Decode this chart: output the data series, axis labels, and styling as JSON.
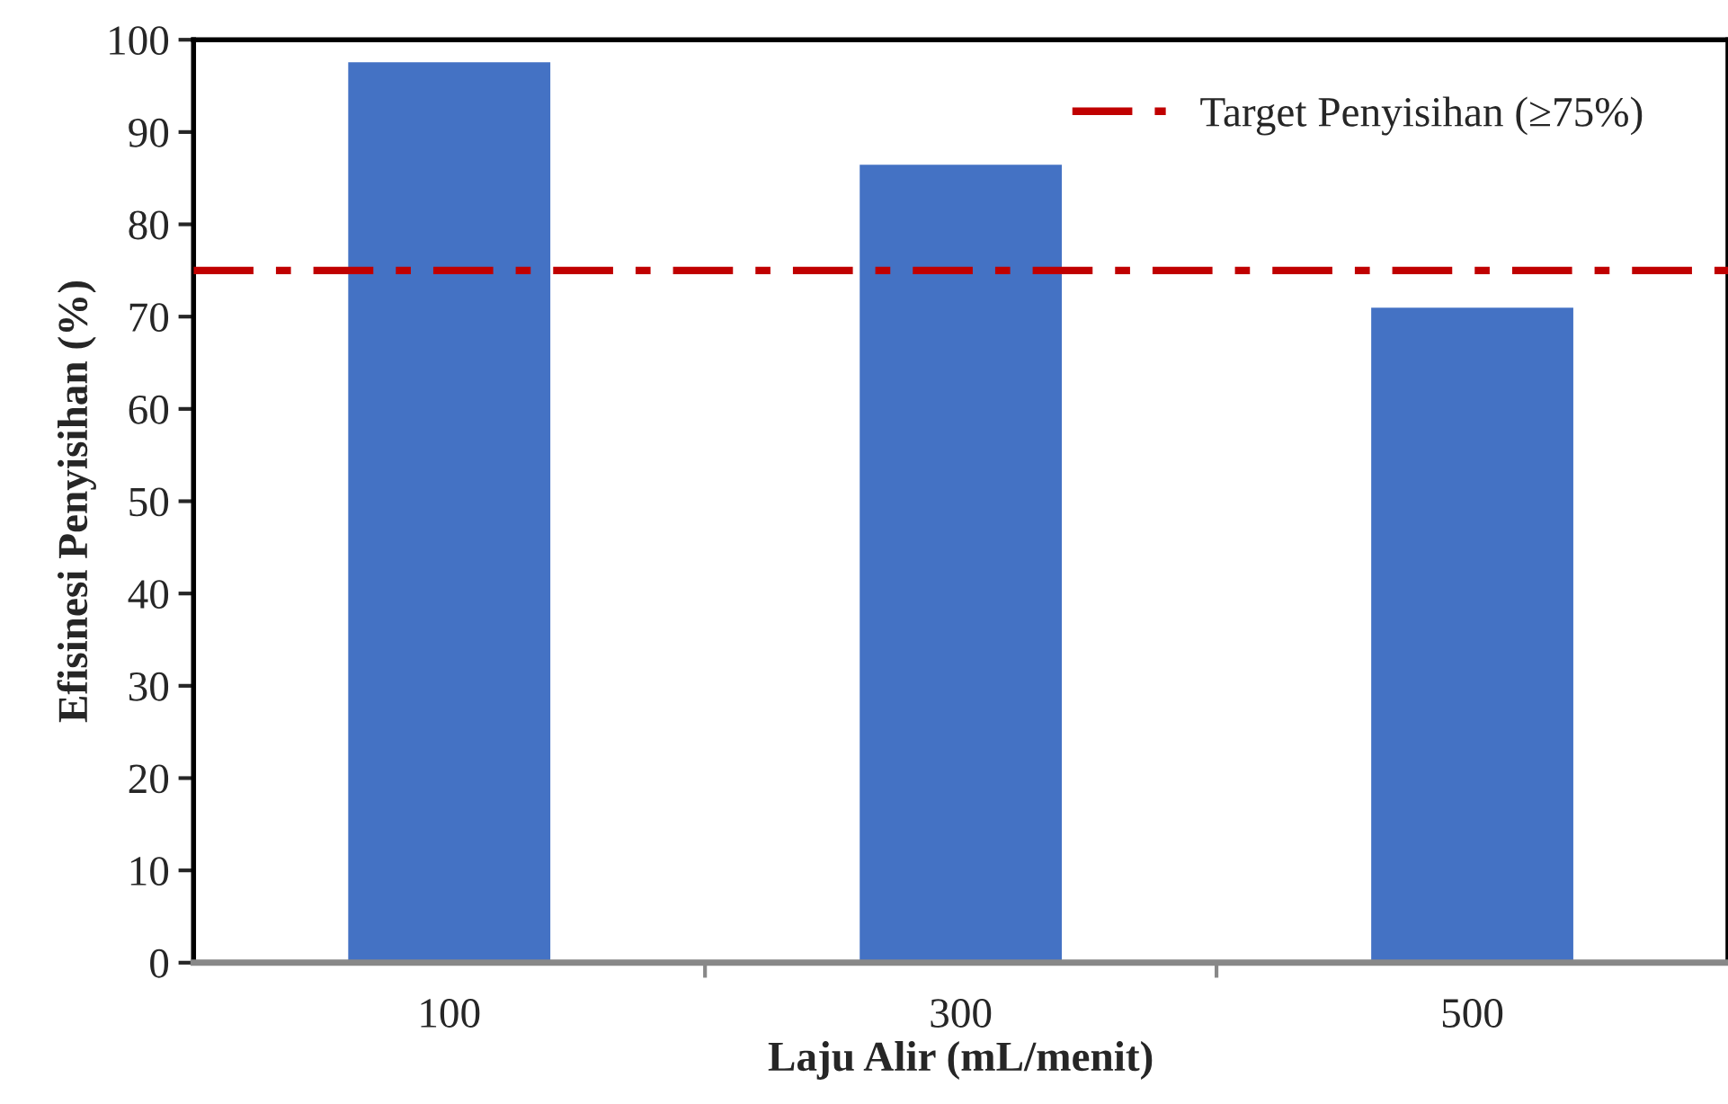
{
  "chart_data": {
    "type": "bar",
    "xlabel": "Laju Alir (mL/menit)",
    "ylabel": "Efisinesi Penyisihan (%)",
    "categories": [
      "100",
      "300",
      "500"
    ],
    "series": [
      {
        "color": "#4472c4",
        "values": [
          97.7,
          86.6,
          71.1
        ]
      }
    ],
    "ylim": [
      0,
      100
    ],
    "yticks": [
      0,
      10,
      20,
      30,
      40,
      50,
      60,
      70,
      80,
      90,
      100
    ],
    "ref_lines": [
      {
        "axis": "y",
        "value": 75,
        "label": "Target Penyisihan (≥75%)",
        "color": "#c00000",
        "line_style": "dashdot"
      }
    ],
    "legend": "top right",
    "grid": false
  }
}
